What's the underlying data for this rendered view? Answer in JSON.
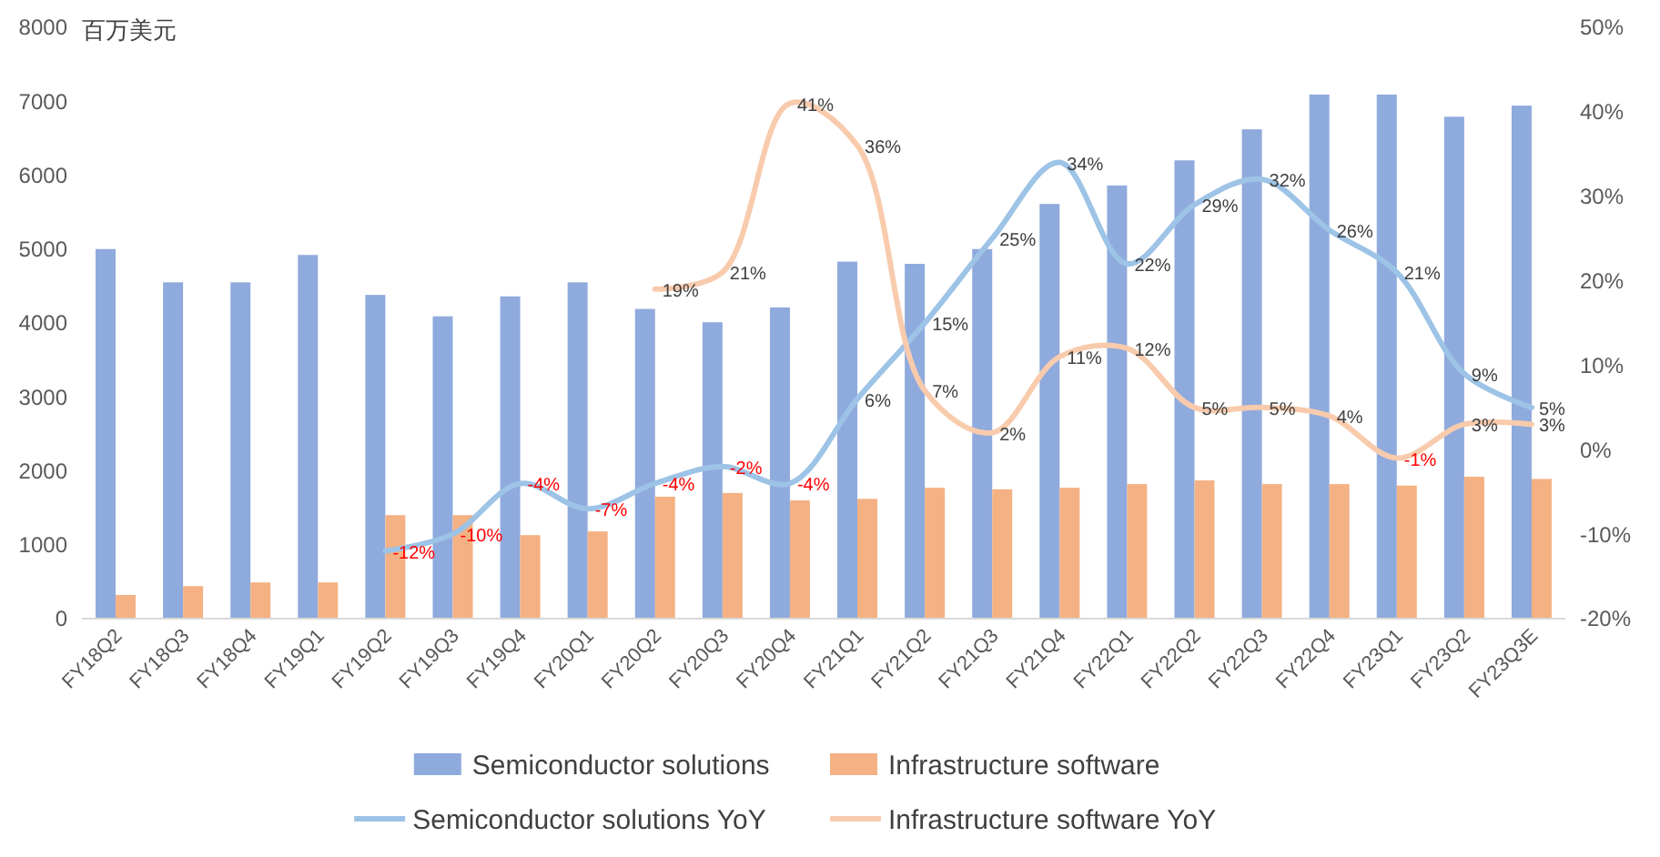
{
  "chart_data": {
    "type": "bar",
    "ylabel": "百万美元",
    "categories": [
      "FY18Q2",
      "FY18Q3",
      "FY18Q4",
      "FY19Q1",
      "FY19Q2",
      "FY19Q3",
      "FY19Q4",
      "FY20Q1",
      "FY20Q2",
      "FY20Q3",
      "FY20Q4",
      "FY21Q1",
      "FY21Q2",
      "FY21Q3",
      "FY21Q4",
      "FY22Q1",
      "FY22Q2",
      "FY22Q3",
      "FY22Q4",
      "FY23Q1",
      "FY23Q2",
      "FY23Q3E"
    ],
    "series": [
      {
        "name": "Semiconductor solutions",
        "color": "#8faadc",
        "values": [
          5000,
          4550,
          4550,
          4920,
          4380,
          4090,
          4360,
          4550,
          4190,
          4010,
          4210,
          4830,
          4800,
          5000,
          5610,
          5860,
          6200,
          6620,
          7090,
          7090,
          6790,
          6940
        ]
      },
      {
        "name": "Infrastructure software",
        "color": "#f4b183",
        "values": [
          320,
          440,
          490,
          490,
          1400,
          1400,
          1130,
          1180,
          1650,
          1700,
          1600,
          1620,
          1770,
          1750,
          1770,
          1820,
          1870,
          1820,
          1820,
          1800,
          1920,
          1890
        ]
      },
      {
        "name": "Semiconductor solutions YoY",
        "type": "line",
        "axis": "y2",
        "color": "#9dc3e6",
        "values": [
          null,
          null,
          null,
          null,
          -12,
          -10,
          -4,
          -7,
          -4,
          -2,
          -4,
          6,
          15,
          25,
          34,
          22,
          29,
          32,
          26,
          21,
          9,
          5
        ],
        "value_labels": [
          null,
          null,
          null,
          null,
          "-12%",
          "-10%",
          "-4%",
          "-7%",
          "-4%",
          "-2%",
          "-4%",
          "6%",
          "15%",
          "25%",
          "34%",
          "22%",
          "29%",
          "32%",
          "26%",
          "21%",
          "9%",
          "5%"
        ]
      },
      {
        "name": "Infrastructure software YoY",
        "type": "line",
        "axis": "y2",
        "color": "#f8cbad",
        "values": [
          null,
          null,
          null,
          null,
          null,
          null,
          null,
          null,
          19,
          21,
          41,
          36,
          7,
          2,
          11,
          12,
          5,
          5,
          4,
          -1,
          3,
          3
        ],
        "value_labels": [
          null,
          null,
          null,
          null,
          null,
          null,
          null,
          null,
          "19%",
          "21%",
          "41%",
          "36%",
          "7%",
          "2%",
          "11%",
          "12%",
          "5%",
          "5%",
          "4%",
          "-1%",
          "3%",
          "3%"
        ]
      }
    ],
    "ylim": [
      0,
      8000
    ],
    "yticks": [
      0,
      1000,
      2000,
      3000,
      4000,
      5000,
      6000,
      7000,
      8000
    ],
    "y2lim": [
      -20,
      50
    ],
    "y2ticks": [
      {
        "value": -20,
        "label": "-20%"
      },
      {
        "value": -10,
        "label": "-10%"
      },
      {
        "value": 0,
        "label": "0%"
      },
      {
        "value": 10,
        "label": "10%"
      },
      {
        "value": 20,
        "label": "20%"
      },
      {
        "value": 30,
        "label": "30%"
      },
      {
        "value": 40,
        "label": "40%"
      },
      {
        "value": 50,
        "label": "50%"
      }
    ],
    "legend": "bottom",
    "grid": false
  }
}
